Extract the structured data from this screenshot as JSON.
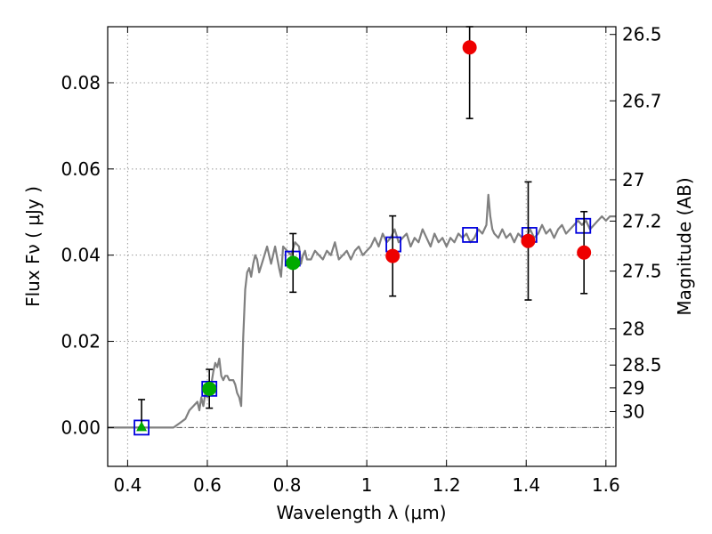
{
  "chart_data": {
    "type": "scatter",
    "title": "",
    "xlabel": "Wavelength  λ (μm)",
    "ylabel": "Flux  Fν  ( μJy )",
    "y2label": "Magnitude (AB)",
    "xlim": [
      0.35,
      1.625
    ],
    "ylim": [
      -0.009,
      0.093
    ],
    "grid": true,
    "x_ticks": [
      0.4,
      0.6,
      0.8,
      1.0,
      1.2,
      1.4,
      1.6
    ],
    "x_tick_labels": [
      "0.4",
      "0.6",
      "0.8",
      "1",
      "1.2",
      "1.4",
      "1.6"
    ],
    "y_ticks": [
      0.0,
      0.02,
      0.04,
      0.06,
      0.08
    ],
    "y_tick_labels": [
      "0.00",
      "0.02",
      "0.04",
      "0.06",
      "0.08"
    ],
    "y2_ticks": [
      {
        "label": "26.5",
        "flux": 0.0912
      },
      {
        "label": "26.7",
        "flux": 0.0758
      },
      {
        "label": "27",
        "flux": 0.0575
      },
      {
        "label": "27.2",
        "flux": 0.0479
      },
      {
        "label": "27.5",
        "flux": 0.0363
      },
      {
        "label": "28",
        "flux": 0.0229
      },
      {
        "label": "28.5",
        "flux": 0.0145
      },
      {
        "label": "29",
        "flux": 0.0092
      },
      {
        "label": "30",
        "flux": 0.0037
      }
    ],
    "colors": {
      "sed": "#808080",
      "model": "#0000dd",
      "detection": "#ee0000",
      "green": "#00aa00",
      "errorbar": "#000000",
      "grid": "#9a9a9a"
    },
    "series": [
      {
        "x": [
          0.35,
          0.4,
          0.43,
          0.45,
          0.48,
          0.5,
          0.515,
          0.53,
          0.545,
          0.555,
          0.565,
          0.575,
          0.58,
          0.585,
          0.59,
          0.595,
          0.6,
          0.605,
          0.61,
          0.615,
          0.62,
          0.625,
          0.63,
          0.635,
          0.64,
          0.645,
          0.65,
          0.655,
          0.66,
          0.665,
          0.67,
          0.675,
          0.68,
          0.685,
          0.69,
          0.695,
          0.7,
          0.705,
          0.71,
          0.715,
          0.72,
          0.725,
          0.73,
          0.74,
          0.75,
          0.76,
          0.77,
          0.78,
          0.785,
          0.79,
          0.8,
          0.81,
          0.82,
          0.83,
          0.835,
          0.84,
          0.845,
          0.85,
          0.86,
          0.87,
          0.88,
          0.89,
          0.9,
          0.91,
          0.92,
          0.93,
          0.94,
          0.95,
          0.96,
          0.97,
          0.98,
          0.99,
          1.0,
          1.01,
          1.02,
          1.03,
          1.04,
          1.05,
          1.06,
          1.07,
          1.08,
          1.09,
          1.1,
          1.11,
          1.12,
          1.13,
          1.14,
          1.15,
          1.16,
          1.17,
          1.18,
          1.19,
          1.2,
          1.21,
          1.22,
          1.23,
          1.24,
          1.25,
          1.26,
          1.27,
          1.28,
          1.29,
          1.3,
          1.305,
          1.31,
          1.315,
          1.32,
          1.33,
          1.34,
          1.35,
          1.36,
          1.37,
          1.38,
          1.39,
          1.4,
          1.41,
          1.42,
          1.43,
          1.44,
          1.45,
          1.46,
          1.47,
          1.48,
          1.49,
          1.5,
          1.51,
          1.52,
          1.53,
          1.54,
          1.55,
          1.56,
          1.57,
          1.58,
          1.59,
          1.6,
          1.61,
          1.625
        ],
        "y": [
          0.0,
          0.0,
          0.0,
          0.0,
          0.0,
          0.0,
          0.0,
          0.001,
          0.002,
          0.004,
          0.005,
          0.006,
          0.004,
          0.007,
          0.005,
          0.008,
          0.007,
          0.009,
          0.01,
          0.013,
          0.015,
          0.014,
          0.016,
          0.012,
          0.011,
          0.012,
          0.012,
          0.011,
          0.011,
          0.011,
          0.01,
          0.008,
          0.007,
          0.005,
          0.021,
          0.032,
          0.036,
          0.037,
          0.035,
          0.038,
          0.04,
          0.039,
          0.036,
          0.039,
          0.042,
          0.038,
          0.042,
          0.037,
          0.035,
          0.042,
          0.041,
          0.04,
          0.043,
          0.042,
          0.038,
          0.04,
          0.041,
          0.039,
          0.039,
          0.041,
          0.04,
          0.039,
          0.041,
          0.04,
          0.043,
          0.039,
          0.04,
          0.041,
          0.039,
          0.041,
          0.042,
          0.04,
          0.041,
          0.042,
          0.044,
          0.042,
          0.045,
          0.043,
          0.044,
          0.046,
          0.043,
          0.044,
          0.045,
          0.042,
          0.044,
          0.043,
          0.046,
          0.044,
          0.042,
          0.045,
          0.043,
          0.044,
          0.042,
          0.044,
          0.043,
          0.045,
          0.044,
          0.045,
          0.043,
          0.044,
          0.046,
          0.045,
          0.047,
          0.054,
          0.049,
          0.046,
          0.045,
          0.044,
          0.046,
          0.044,
          0.045,
          0.043,
          0.045,
          0.044,
          0.044,
          0.046,
          0.044,
          0.045,
          0.047,
          0.045,
          0.046,
          0.044,
          0.046,
          0.047,
          0.045,
          0.046,
          0.047,
          0.048,
          0.047,
          0.048,
          0.046,
          0.047,
          0.048,
          0.049,
          0.048,
          0.049,
          0.049
        ]
      },
      {
        "x": [
          0.435,
          0.605,
          0.814,
          1.067,
          1.259,
          1.408,
          1.543
        ],
        "y": [
          0.0,
          0.009,
          0.0392,
          0.0425,
          0.0447,
          0.0447,
          0.0468
        ]
      },
      {
        "x": [
          1.065,
          1.258,
          1.405,
          1.545
        ],
        "y": [
          0.0398,
          0.0882,
          0.0433,
          0.0406
        ],
        "yerr": [
          0.0093,
          0.0165,
          0.0137,
          0.0095
        ]
      },
      {
        "x": [
          0.605,
          0.815
        ],
        "y": [
          0.009,
          0.0382
        ],
        "yerr": [
          0.0045,
          0.0068
        ]
      },
      {
        "x": [
          0.435
        ],
        "y": [
          0.0
        ],
        "yerr_upper": [
          0.0065
        ]
      }
    ]
  }
}
